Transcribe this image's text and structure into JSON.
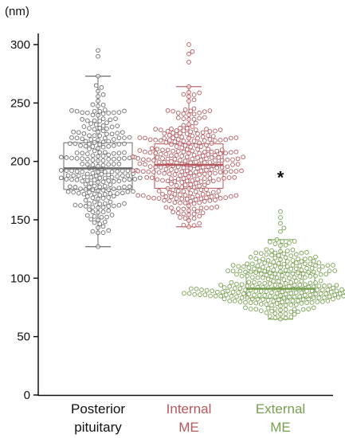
{
  "chart_data": {
    "type": "box-swarm",
    "unit_label": "(nm)",
    "ylim": [
      0,
      310
    ],
    "yticks": [
      0,
      50,
      100,
      150,
      200,
      250,
      300
    ],
    "grid": false,
    "groups": [
      {
        "label_line1": "Posterior",
        "label_line2": "pituitary",
        "color": "#6b6b6b",
        "label_color": "#111111",
        "whisker_low": 127,
        "q1": 176,
        "median": 194,
        "q3": 216,
        "whisker_high": 273,
        "outliers": [
          295,
          290
        ],
        "n_points": 240,
        "annotation": ""
      },
      {
        "label_line1": "Internal",
        "label_line2": "ME",
        "color": "#b5585c",
        "label_color": "#b5585c",
        "whisker_low": 144,
        "q1": 177,
        "median": 197,
        "q3": 215,
        "whisker_high": 264,
        "outliers": [
          300,
          294,
          292,
          285
        ],
        "n_points": 320,
        "annotation": ""
      },
      {
        "label_line1": "External",
        "label_line2": "ME",
        "color": "#76a04f",
        "label_color": "#76a04f",
        "whisker_low": 65,
        "q1": 83,
        "median": 91,
        "q3": 105,
        "whisker_high": 133,
        "outliers": [
          157,
          152,
          147,
          143,
          140
        ],
        "n_points": 300,
        "annotation": "*"
      }
    ]
  }
}
